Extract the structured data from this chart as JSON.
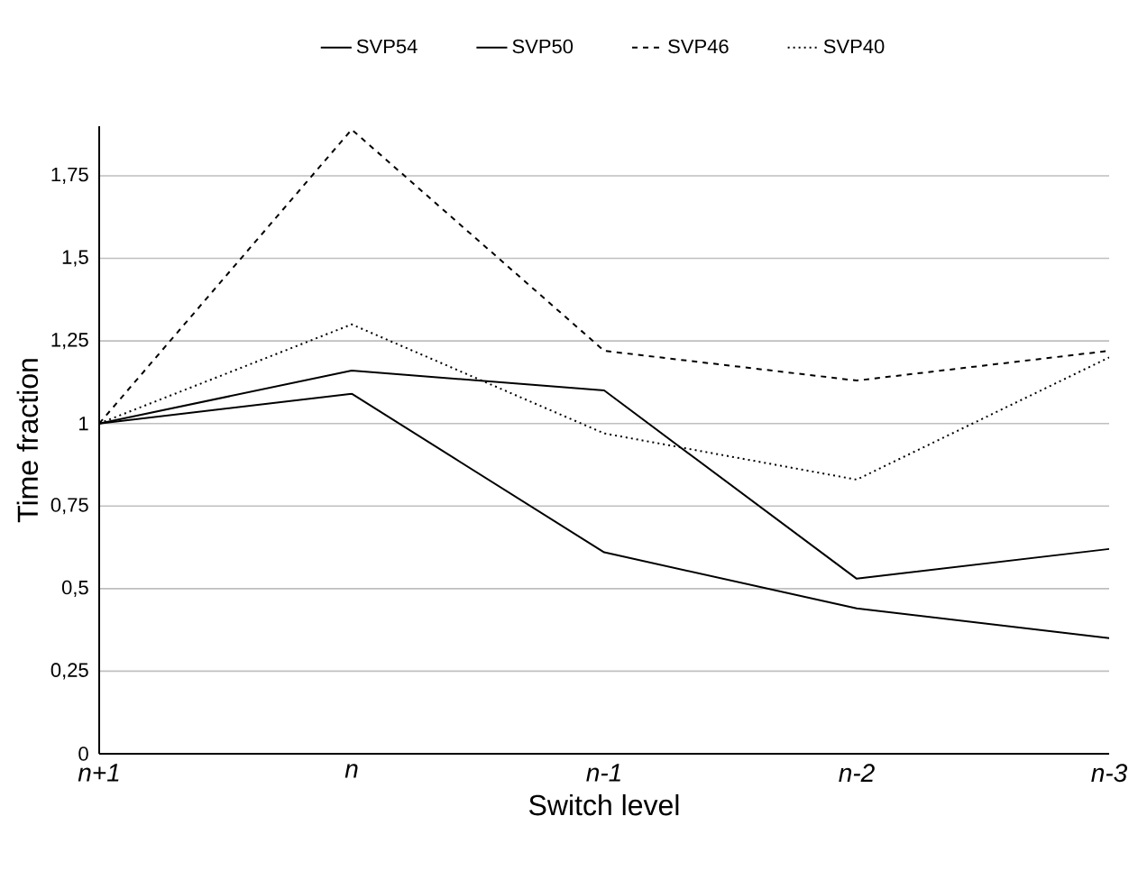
{
  "chart_data": {
    "type": "line",
    "xlabel": "Switch level",
    "ylabel": "Time fraction",
    "categories": [
      "n+1",
      "n",
      "n-1",
      "n-2",
      "n-3"
    ],
    "series": [
      {
        "name": "SVP54",
        "color": "#000000",
        "line_style": "solid",
        "values": [
          1,
          1.09,
          0.61,
          0.44,
          0.35
        ]
      },
      {
        "name": "SVP50",
        "color": "#000000",
        "line_style": "solid",
        "values": [
          1,
          1.16,
          1.1,
          0.53,
          0.62
        ]
      },
      {
        "name": "SVP46",
        "color": "#000000",
        "line_style": "dashed",
        "values": [
          1,
          1.89,
          1.22,
          1.13,
          1.22
        ]
      },
      {
        "name": "SVP40",
        "color": "#000000",
        "line_style": "dotted",
        "values": [
          1,
          1.3,
          0.97,
          0.83,
          1.2
        ]
      }
    ],
    "ylim": [
      0,
      1.9
    ],
    "yticks": [
      0,
      {
        "value": 0.25,
        "label": "0,25"
      },
      {
        "value": 0.5,
        "label": "0,5"
      },
      {
        "value": 0.75,
        "label": "0,75"
      },
      1,
      {
        "value": 1.25,
        "label": "1,25"
      },
      {
        "value": 1.5,
        "label": "1,5"
      },
      {
        "value": 1.75,
        "label": "1,75"
      }
    ],
    "grid": "y",
    "legend": "top",
    "marker": "none"
  }
}
